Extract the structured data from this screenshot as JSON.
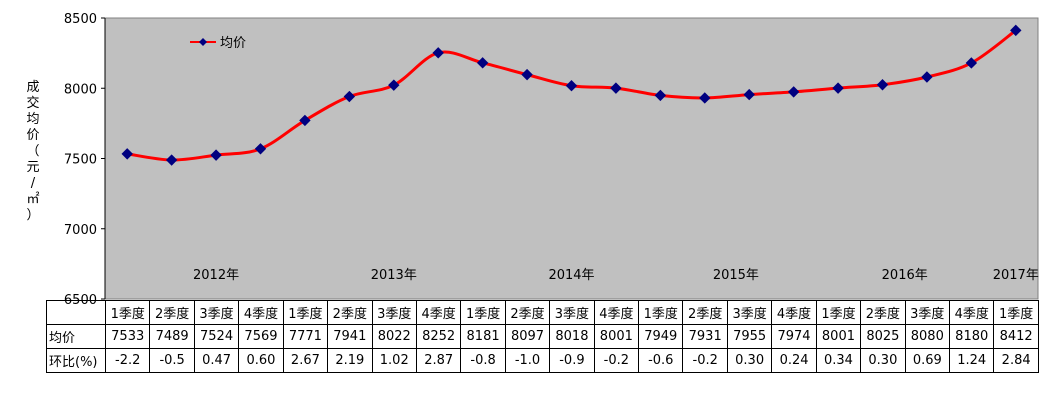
{
  "chart_data": {
    "type": "line",
    "ylabel": [
      "成",
      "交",
      "均",
      "价",
      "（",
      "元",
      "/",
      "㎡",
      "）"
    ],
    "ylim": [
      6500,
      8500
    ],
    "yticks": [
      6500,
      7000,
      7500,
      8000,
      8500
    ],
    "legend": "top-left",
    "plot_background": "#C0C0C0",
    "grid": false,
    "categories": [
      "1季度",
      "2季度",
      "3季度",
      "4季度",
      "1季度",
      "2季度",
      "3季度",
      "4季度",
      "1季度",
      "2季度",
      "3季度",
      "4季度",
      "1季度",
      "2季度",
      "3季度",
      "4季度",
      "1季度",
      "2季度",
      "3季度",
      "4季度",
      "1季度"
    ],
    "year_labels": [
      {
        "text": "2012年",
        "index": 2
      },
      {
        "text": "2013年",
        "index": 6
      },
      {
        "text": "2014年",
        "index": 10
      },
      {
        "text": "2015年",
        "index": 13.7
      },
      {
        "text": "2016年",
        "index": 17.5
      },
      {
        "text": "2017年",
        "index": 20
      }
    ],
    "series": [
      {
        "name": "均价",
        "values": [
          7533,
          7489,
          7524,
          7569,
          7771,
          7941,
          8022,
          8252,
          8181,
          8097,
          8018,
          8001,
          7949,
          7931,
          7955,
          7974,
          8001,
          8025,
          8080,
          8180,
          8412
        ],
        "line_color": "#FF0000",
        "marker_color": "#000080",
        "marker": "diamond"
      }
    ],
    "table_rows": [
      {
        "label": "均价",
        "values": [
          "7533",
          "7489",
          "7524",
          "7569",
          "7771",
          "7941",
          "8022",
          "8252",
          "8181",
          "8097",
          "8018",
          "8001",
          "7949",
          "7931",
          "7955",
          "7974",
          "8001",
          "8025",
          "8080",
          "8180",
          "8412"
        ]
      },
      {
        "label": "环比(%)",
        "values": [
          "-2.2",
          "-0.5",
          "0.47",
          "0.60",
          "2.67",
          "2.19",
          "1.02",
          "2.87",
          "-0.8",
          "-1.0",
          "-0.9",
          "-0.2",
          "-0.6",
          "-0.2",
          "0.30",
          "0.24",
          "0.34",
          "0.30",
          "0.69",
          "1.24",
          "2.84"
        ]
      }
    ]
  }
}
